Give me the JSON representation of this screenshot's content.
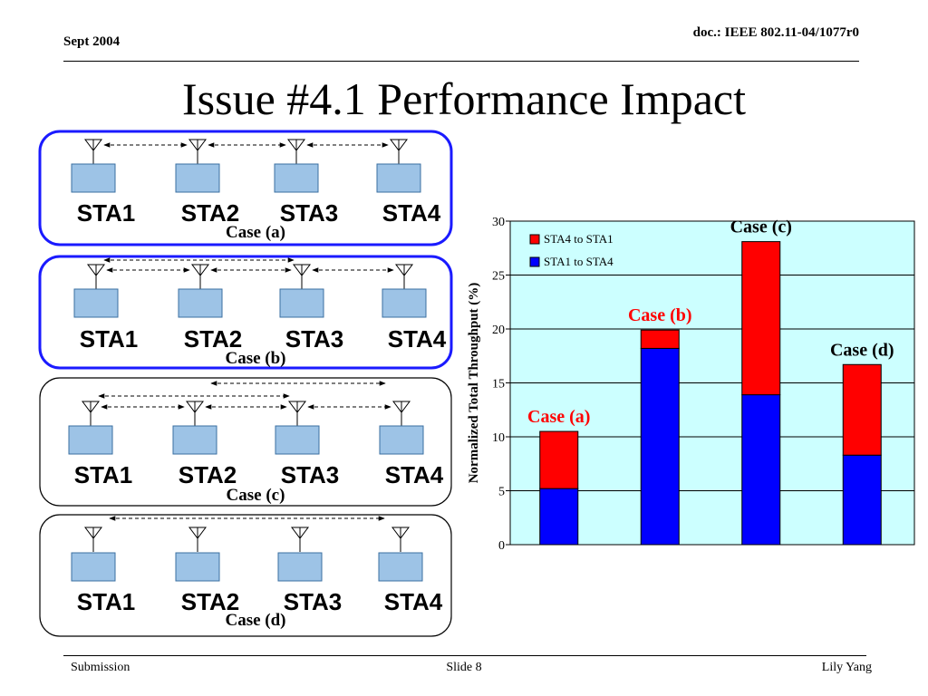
{
  "header": {
    "date": "Sept 2004",
    "doc_prefix": "doc.:",
    "doc_id": "IEEE 802.11-04/1077r0"
  },
  "title": "Issue #4.1 Performance Impact",
  "footer": {
    "left": "Submission",
    "center": "Slide 8",
    "right": "Lily Yang"
  },
  "diagram": {
    "stations": [
      "STA1",
      "STA2",
      "STA3",
      "STA4"
    ],
    "cases": [
      {
        "label": "Case (a)",
        "border_color": "#1a1aff",
        "highlighted": true
      },
      {
        "label": "Case (b)",
        "border_color": "#1a1aff",
        "highlighted": true
      },
      {
        "label": "Case (c)",
        "border_color": "#000000",
        "highlighted": false
      },
      {
        "label": "Case (d)",
        "border_color": "#000000",
        "highlighted": false
      }
    ],
    "station_color": "#9dc3e6"
  },
  "chart_data": {
    "type": "bar",
    "stacked": true,
    "categories": [
      "Case (a)",
      "Case (b)",
      "Case (c)",
      "Case (d)"
    ],
    "series": [
      {
        "name": "STA1 to STA4",
        "color": "#0000ff",
        "values": [
          5.2,
          18.2,
          13.9,
          8.3
        ]
      },
      {
        "name": "STA4 to STA1",
        "color": "#ff0000",
        "values": [
          5.3,
          1.7,
          14.2,
          8.4
        ]
      }
    ],
    "legend_order": [
      "STA4 to STA1",
      "STA1 to STA4"
    ],
    "legend_position": "top-left",
    "ylabel": "Normalized Total Throughput (%)",
    "ylim": [
      0,
      30
    ],
    "yticks": [
      0,
      5,
      10,
      15,
      20,
      25,
      30
    ],
    "grid": true,
    "plot_background": "#ccffff",
    "annotation_color_red_cases": [
      "Case (a)",
      "Case (b)"
    ]
  }
}
